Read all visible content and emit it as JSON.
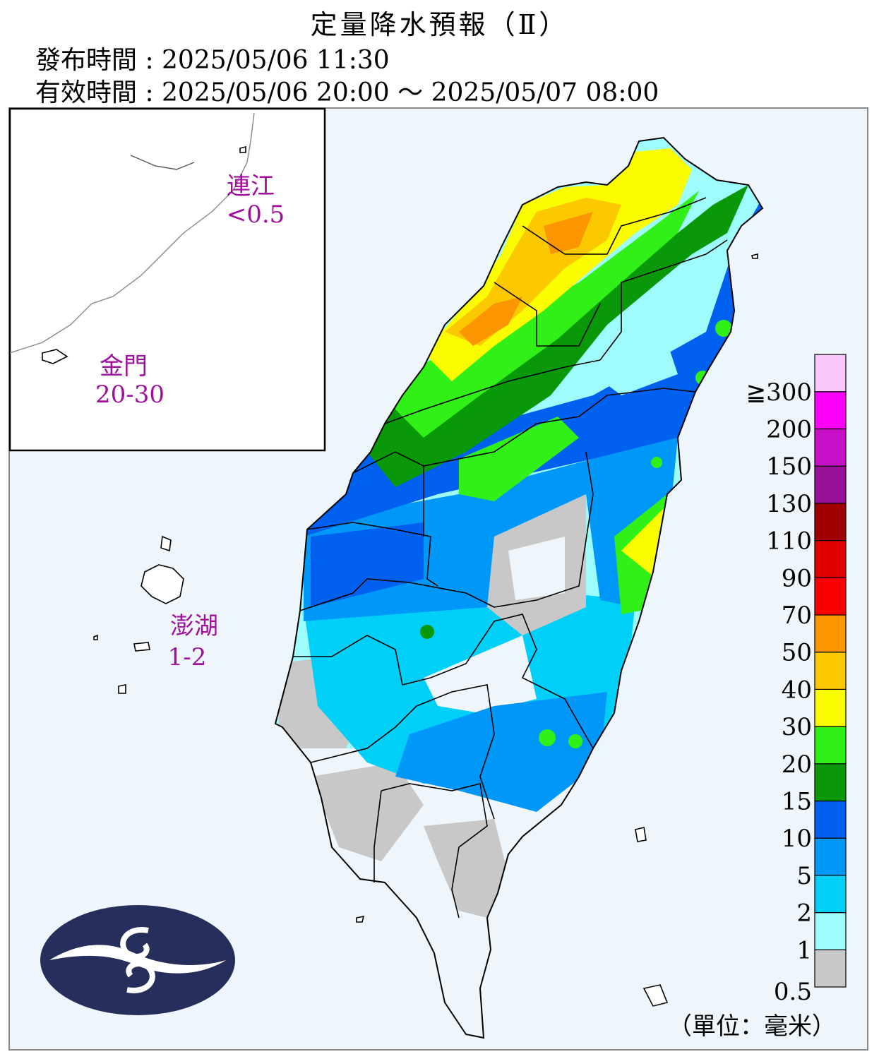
{
  "title": "定量降水預報（Ⅱ）",
  "issue_time": "發布時間 : 2025/05/06 11:30",
  "valid_time": "有效時間 : 2025/05/06 20:00 ～ 2025/05/07 08:00",
  "islands": {
    "matsu": {
      "name": "連江",
      "value": "<0.5"
    },
    "kinmen": {
      "name": "金門",
      "value": "20-30"
    },
    "penghu": {
      "name": "澎湖",
      "value": "1-2"
    }
  },
  "legend": {
    "unit": "（單位：毫米）",
    "levels": [
      "0.5",
      "1",
      "2",
      "5",
      "10",
      "15",
      "20",
      "30",
      "40",
      "50",
      "70",
      "90",
      "110",
      "130",
      "150",
      "200",
      "≧300"
    ],
    "colors": [
      "#c8c8c8",
      "#9ffcfc",
      "#00d0f8",
      "#0098f8",
      "#0060f0",
      "#089808",
      "#30f018",
      "#fcfc00",
      "#fcc800",
      "#fc9600",
      "#fc0000",
      "#e00000",
      "#a00000",
      "#981098",
      "#c810c8",
      "#fc00fc",
      "#fcc8fc"
    ]
  },
  "label_color": "#a0109c"
}
